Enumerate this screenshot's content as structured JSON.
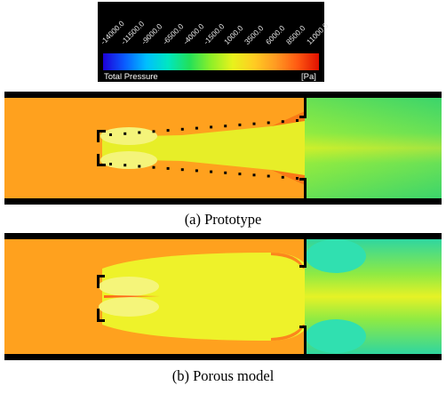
{
  "legend": {
    "ticks": [
      "-14000.0",
      "-11500.0",
      "-9000.0",
      "-6500.0",
      "-4000.0",
      "-1500.0",
      "1000.0",
      "3500.0",
      "6000.0",
      "8500.0",
      "11000.0"
    ],
    "title": "Total Pressure",
    "unit": "[Pa]",
    "colors": [
      "#1d00d8",
      "#0a5cff",
      "#00bfff",
      "#00e6c2",
      "#22e05a",
      "#8ef028",
      "#e8f21c",
      "#ffcc22",
      "#ff9a22",
      "#ff5a12",
      "#e01000"
    ]
  },
  "panels": [
    {
      "caption": "(a)  Prototype"
    },
    {
      "caption": "(b)  Porous  model"
    }
  ]
}
